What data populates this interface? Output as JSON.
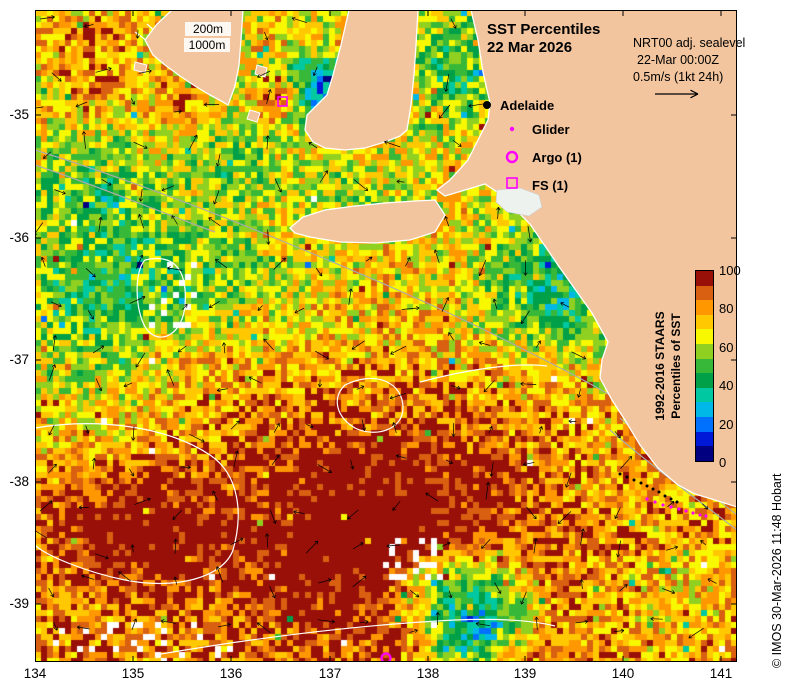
{
  "title": {
    "line1": "SST Percentiles",
    "line2": "22 Mar 2026"
  },
  "info": {
    "line1": "NRT00 adj. sealevel",
    "line2": "22-Mar 00:00Z",
    "line3": "0.5m/s (1kt 24h)"
  },
  "contour_labels": {
    "l200": "200m",
    "l1000": "1000m"
  },
  "markers": {
    "adelaide": "Adelaide",
    "glider": "Glider",
    "argo": "Argo (1)",
    "fs": "FS (1)"
  },
  "colorbar": {
    "title_line1": "1992-2016 STAARS",
    "title_line2": "Percentiles of SST",
    "ticks": [
      "100",
      "80",
      "60",
      "40",
      "20",
      "0"
    ],
    "palette_bottom_to_top": [
      "#000080",
      "#0018D8",
      "#0070FF",
      "#00B8E8",
      "#00C8A0",
      "#00A048",
      "#38B838",
      "#90D020",
      "#F8F800",
      "#FFC800",
      "#FF9800",
      "#D86010",
      "#981008"
    ]
  },
  "axes": {
    "x_ticks": [
      "134",
      "135",
      "136",
      "137",
      "138",
      "139",
      "140",
      "141"
    ],
    "y_ticks": [
      "-35",
      "-36",
      "-37",
      "-38",
      "-39"
    ]
  },
  "credit": "© IMOS 30-Mar-2026 11:48 Hobart",
  "colors": {
    "land": "#F2C59E",
    "magenta": "#FF00FF",
    "lake": "#EDF2EE"
  }
}
